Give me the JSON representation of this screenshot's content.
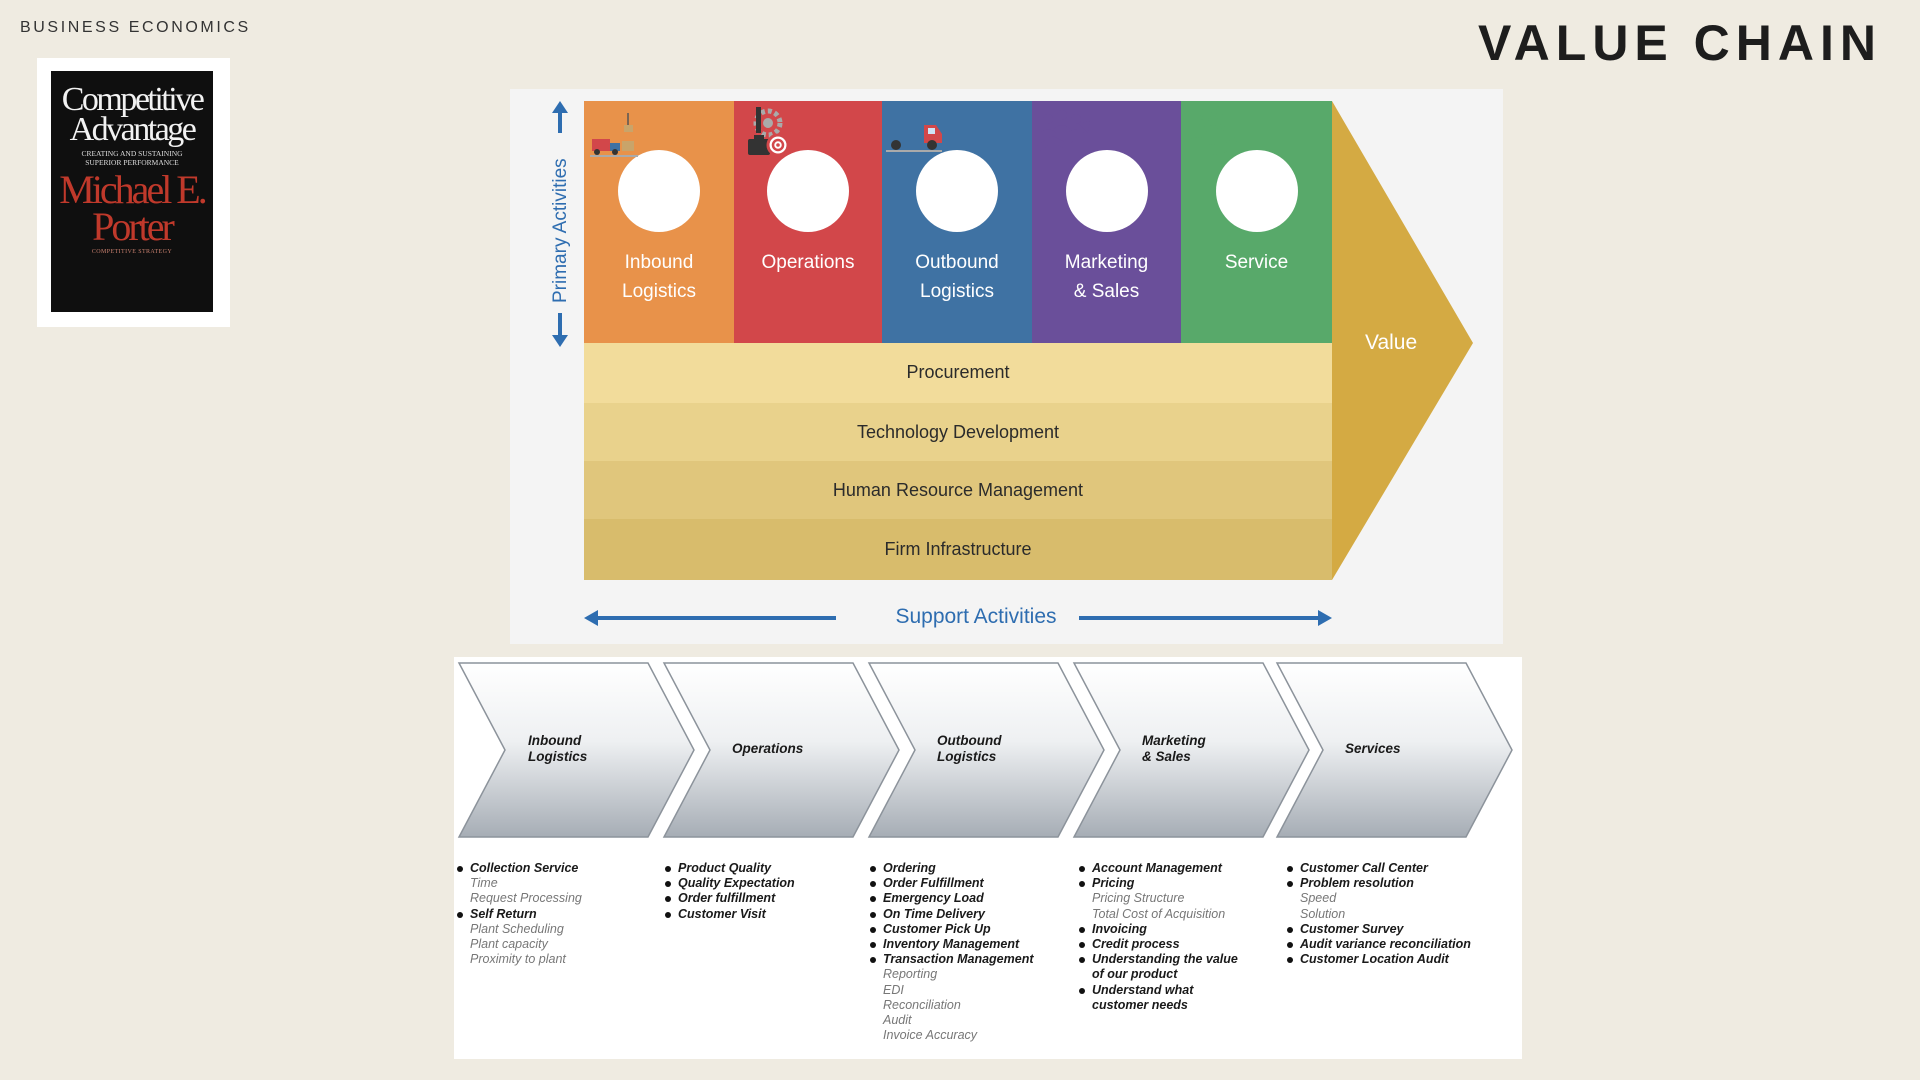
{
  "header": {
    "kicker": "BUSINESS ECONOMICS",
    "title": "VALUE CHAIN"
  },
  "book": {
    "title_line1": "Competitive",
    "title_line2": "Advantage",
    "subtitle": "Creating and Sustaining Superior Performance",
    "author_line1": "Michael E.",
    "author_line2": "Porter",
    "footer": "Competitive Strategy"
  },
  "porter": {
    "primary_axis_label": "Primary Activities",
    "support_axis_label": "Support Activities",
    "value_label": "Value",
    "primary": [
      {
        "line1": "Inbound",
        "line2": "Logistics",
        "color": "#e8924a",
        "icon": "crane-icon"
      },
      {
        "line1": "Operations",
        "line2": "",
        "color": "#d2474a",
        "icon": "gears-target-icon"
      },
      {
        "line1": "Outbound",
        "line2": "Logistics",
        "color": "#3f72a3",
        "icon": "truck-icon"
      },
      {
        "line1": "Marketing",
        "line2": "& Sales",
        "color": "#6a4f9a",
        "icon": "growth-people-icon"
      },
      {
        "line1": "Service",
        "line2": "",
        "color": "#58a96a",
        "icon": "hand-gear-icon"
      }
    ],
    "support": [
      {
        "label": "Procurement",
        "color": "#f2dc9b"
      },
      {
        "label": "Technology Development",
        "color": "#e9d28c"
      },
      {
        "label": "Human Resource Management",
        "color": "#e0c67c"
      },
      {
        "label": "Firm Infrastructure",
        "color": "#d8bc6c"
      }
    ],
    "value_color": "#d4aa43"
  },
  "chain": {
    "stages": [
      {
        "line1": "Inbound",
        "line2": "Logistics"
      },
      {
        "line1": "Operations",
        "line2": ""
      },
      {
        "line1": "Outbound",
        "line2": "Logistics"
      },
      {
        "line1": "Marketing",
        "line2": "& Sales"
      },
      {
        "line1": "Services",
        "line2": ""
      }
    ],
    "columns": [
      [
        {
          "t": "Collection Service",
          "b": true
        },
        {
          "t": "Time",
          "b": false
        },
        {
          "t": "Request Processing",
          "b": false
        },
        {
          "t": "Self Return",
          "b": true
        },
        {
          "t": "Plant Scheduling",
          "b": false
        },
        {
          "t": "Plant capacity",
          "b": false
        },
        {
          "t": "Proximity to plant",
          "b": false
        }
      ],
      [
        {
          "t": "Product Quality",
          "b": true
        },
        {
          "t": "Quality Expectation",
          "b": true
        },
        {
          "t": "Order fulfillment",
          "b": true
        },
        {
          "t": "Customer Visit",
          "b": true
        }
      ],
      [
        {
          "t": "Ordering",
          "b": true
        },
        {
          "t": "Order Fulfillment",
          "b": true
        },
        {
          "t": "Emergency Load",
          "b": true
        },
        {
          "t": "On Time Delivery",
          "b": true
        },
        {
          "t": "Customer Pick Up",
          "b": true
        },
        {
          "t": "Inventory Management",
          "b": true
        },
        {
          "t": "Transaction Management",
          "b": true
        },
        {
          "t": "Reporting",
          "b": false
        },
        {
          "t": "EDI",
          "b": false
        },
        {
          "t": "Reconciliation",
          "b": false
        },
        {
          "t": "Audit",
          "b": false
        },
        {
          "t": "Invoice Accuracy",
          "b": false
        }
      ],
      [
        {
          "t": "Account Management",
          "b": true
        },
        {
          "t": "Pricing",
          "b": true
        },
        {
          "t": "Pricing Structure",
          "b": false
        },
        {
          "t": "Total Cost of Acquisition",
          "b": false
        },
        {
          "t": "Invoicing",
          "b": true
        },
        {
          "t": "Credit process",
          "b": true
        },
        {
          "t": "Understanding the value",
          "b": true
        },
        {
          "t": "of our product",
          "b": false,
          "cont": true
        },
        {
          "t": "Understand what",
          "b": true
        },
        {
          "t": "customer needs",
          "b": false,
          "cont": true
        }
      ],
      [
        {
          "t": "Customer Call Center",
          "b": true
        },
        {
          "t": "Problem resolution",
          "b": true
        },
        {
          "t": "Speed",
          "b": false
        },
        {
          "t": "Solution",
          "b": false
        },
        {
          "t": "Customer Survey",
          "b": true
        },
        {
          "t": "Audit variance reconciliation",
          "b": true
        },
        {
          "t": "Customer Location Audit",
          "b": true
        }
      ]
    ]
  }
}
